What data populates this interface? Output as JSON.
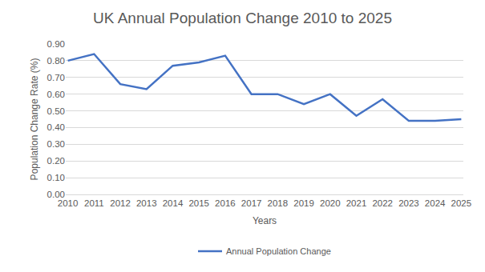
{
  "chart_data": {
    "type": "line",
    "title": "UK Annual Population Change 2010 to 2025",
    "x_label": "Years",
    "y_label": "Population Change Rate (%)",
    "categories": [
      "2010",
      "2011",
      "2012",
      "2013",
      "2014",
      "2015",
      "2016",
      "2017",
      "2018",
      "2019",
      "2020",
      "2021",
      "2022",
      "2023",
      "2024",
      "2025"
    ],
    "series": [
      {
        "name": "Annual Population Change",
        "color": "#4472c4",
        "values": [
          0.8,
          0.84,
          0.66,
          0.63,
          0.77,
          0.79,
          0.83,
          0.6,
          0.6,
          0.54,
          0.6,
          0.47,
          0.57,
          0.44,
          0.44,
          0.45
        ]
      }
    ],
    "ylim": [
      0,
      0.9
    ],
    "yticks": [
      {
        "value": 0,
        "label": "0.00"
      },
      {
        "value": 0.1,
        "label": "0.10"
      },
      {
        "value": 0.2,
        "label": "0.20"
      },
      {
        "value": 0.3,
        "label": "0.30"
      },
      {
        "value": 0.4,
        "label": "0.40"
      },
      {
        "value": 0.5,
        "label": "0.50"
      },
      {
        "value": 0.6,
        "label": "0.60"
      },
      {
        "value": 0.7,
        "label": "0.70"
      },
      {
        "value": 0.8,
        "label": "0.80"
      },
      {
        "value": 0.9,
        "label": "0.90"
      }
    ],
    "grid": true,
    "legend": "bottom"
  }
}
